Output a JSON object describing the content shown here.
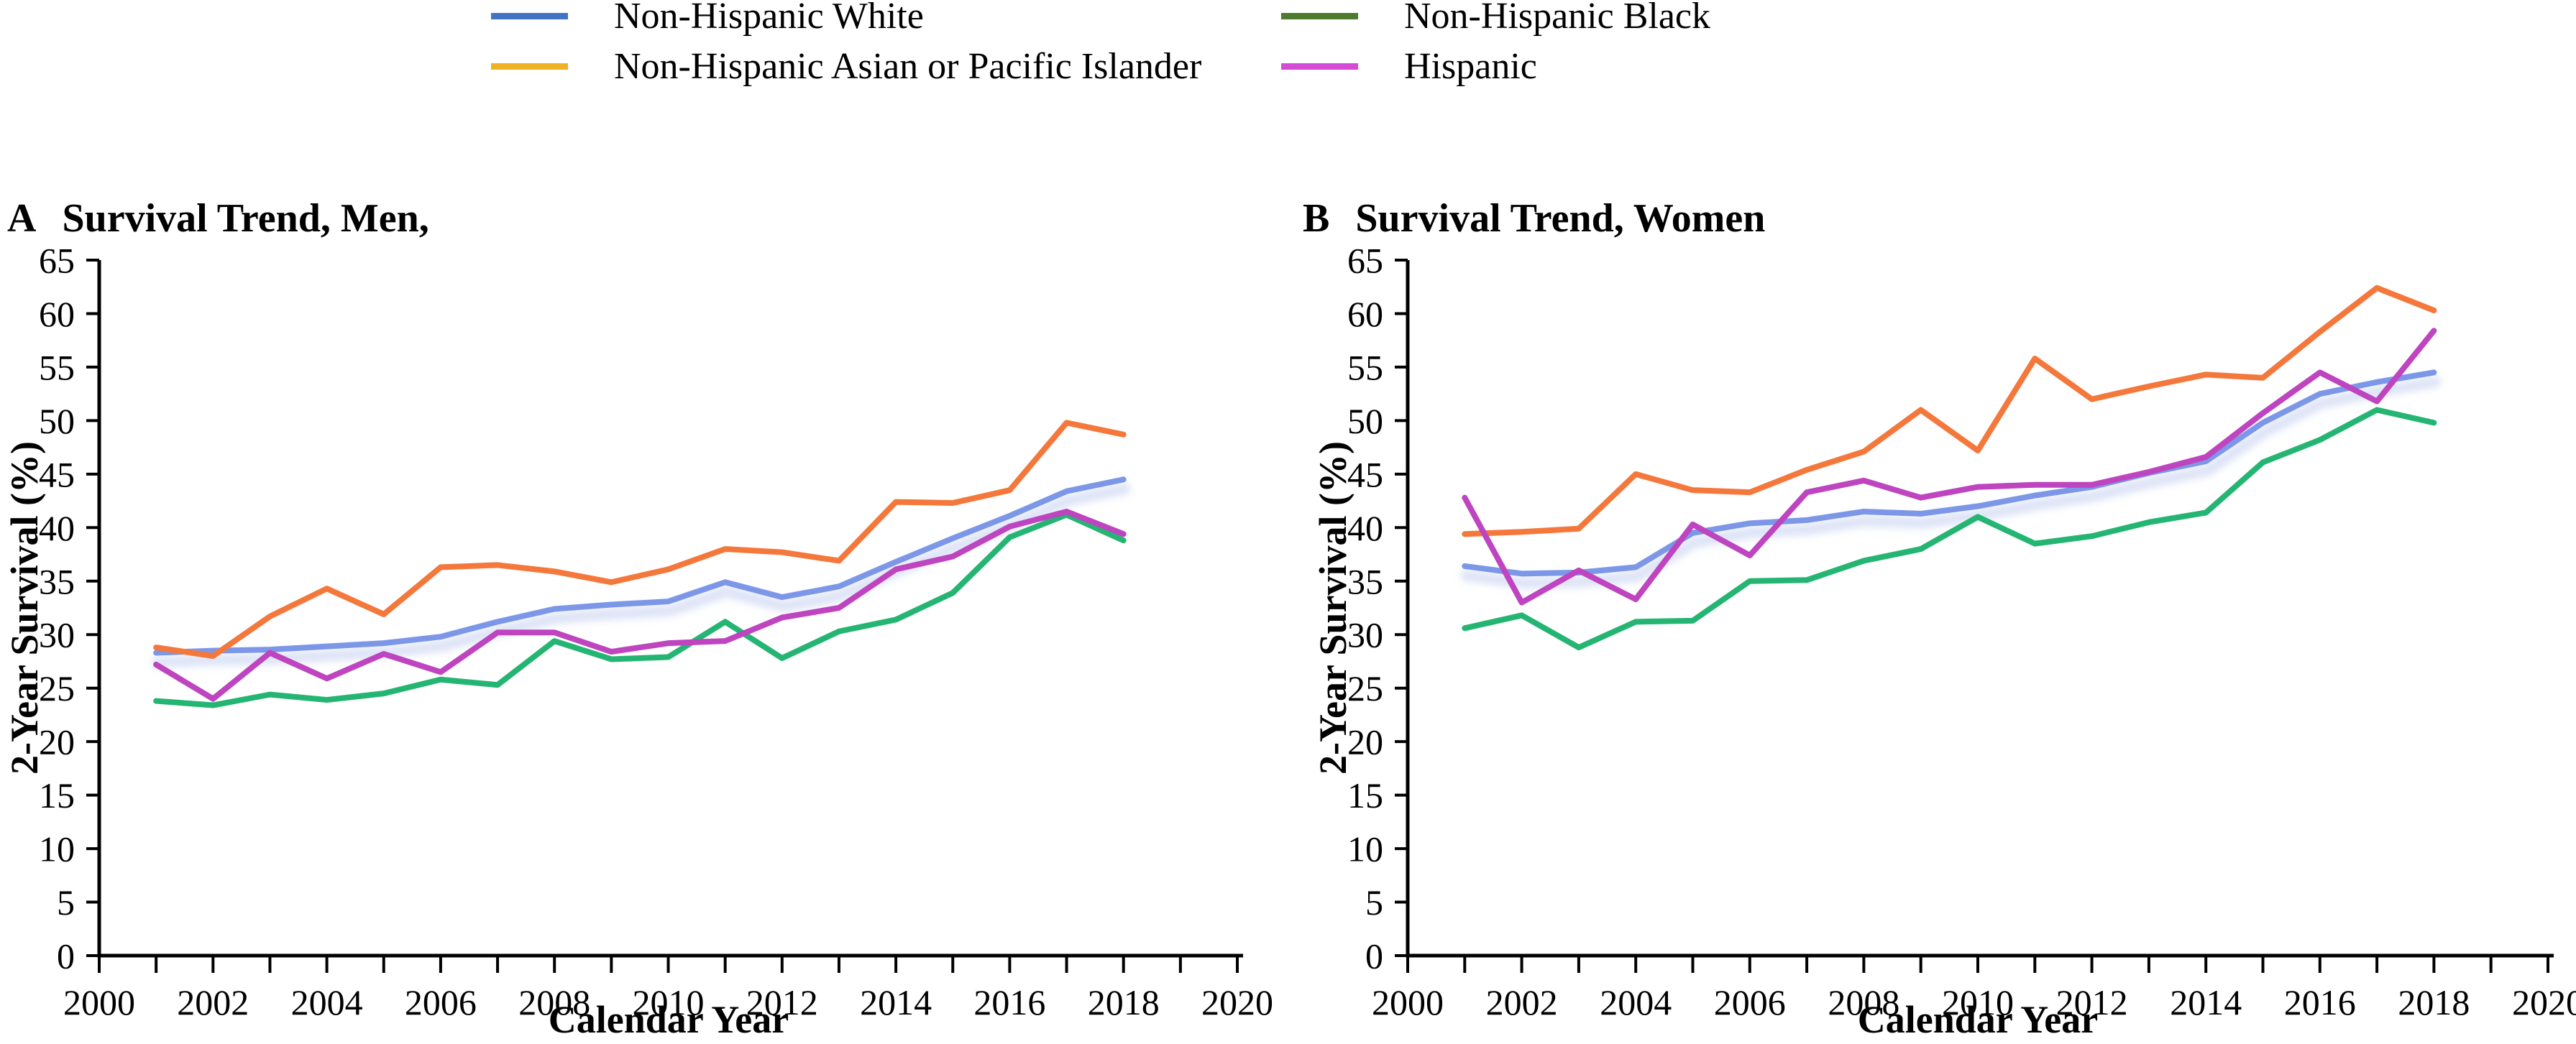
{
  "figure": {
    "background": "#ffffff",
    "axis_color": "#000000",
    "legend": {
      "position": "top",
      "items": [
        {
          "label": "Non-Hispanic White",
          "swatch_color": "#4472C4"
        },
        {
          "label": "Non-Hispanic Asian or Pacific Islander",
          "swatch_color": "#EFB225"
        },
        {
          "label": "Non-Hispanic Black",
          "swatch_color": "#4E7B30"
        },
        {
          "label": "Hispanic",
          "swatch_color": "#D64BD6"
        }
      ]
    }
  },
  "chart_data": [
    {
      "panel_label": "A",
      "title": "Survival Trend, Men,",
      "type": "line",
      "xlabel": "Calendar Year",
      "ylabel": "2-Year Survival (%)",
      "xlim": [
        2000,
        2020
      ],
      "ylim": [
        0,
        65
      ],
      "ytick_interval": 5,
      "xtick_label_interval": 2,
      "xtick_minor_interval": 1,
      "grid": false,
      "x": [
        2001,
        2002,
        2003,
        2004,
        2005,
        2006,
        2007,
        2008,
        2009,
        2010,
        2011,
        2012,
        2013,
        2014,
        2015,
        2016,
        2017,
        2018
      ],
      "series": [
        {
          "name": "Non-Hispanic White",
          "color": "#7D97E8",
          "halo": true,
          "halo_color": "#C7D2F1",
          "values": [
            28.3,
            28.5,
            28.6,
            28.9,
            29.2,
            29.8,
            31.2,
            32.4,
            32.8,
            33.1,
            34.9,
            33.5,
            34.5,
            36.8,
            39.0,
            41.1,
            43.4,
            44.5
          ]
        },
        {
          "name": "Non-Hispanic Asian or Pacific Islander",
          "color": "#F4783C",
          "values": [
            28.8,
            28.0,
            31.7,
            34.3,
            31.9,
            36.3,
            36.5,
            35.9,
            34.9,
            36.1,
            38.0,
            37.7,
            36.9,
            42.4,
            42.3,
            43.5,
            49.8,
            48.7
          ]
        },
        {
          "name": "Non-Hispanic Black",
          "color": "#25B573",
          "values": [
            23.8,
            23.4,
            24.4,
            23.9,
            24.5,
            25.8,
            25.3,
            29.4,
            27.7,
            27.9,
            31.2,
            27.8,
            30.3,
            31.4,
            33.9,
            39.1,
            41.2,
            38.8
          ]
        },
        {
          "name": "Hispanic",
          "color": "#BE44C0",
          "values": [
            27.2,
            24.0,
            28.3,
            25.9,
            28.2,
            26.5,
            30.2,
            30.2,
            28.4,
            29.2,
            29.4,
            31.6,
            32.5,
            36.1,
            37.3,
            40.1,
            41.5,
            39.4
          ]
        }
      ]
    },
    {
      "panel_label": "B",
      "title": "Survival Trend, Women",
      "type": "line",
      "xlabel": "Calendar Year",
      "ylabel": "2-Year Survival (%)",
      "xlim": [
        2000,
        2020
      ],
      "ylim": [
        0,
        65
      ],
      "ytick_interval": 5,
      "xtick_label_interval": 2,
      "xtick_minor_interval": 1,
      "grid": false,
      "x": [
        2001,
        2002,
        2003,
        2004,
        2005,
        2006,
        2007,
        2008,
        2009,
        2010,
        2011,
        2012,
        2013,
        2014,
        2015,
        2016,
        2017,
        2018
      ],
      "series": [
        {
          "name": "Non-Hispanic White",
          "color": "#7D97E8",
          "halo": true,
          "halo_color": "#C7D2F1",
          "values": [
            36.4,
            35.7,
            35.8,
            36.3,
            39.5,
            40.4,
            40.7,
            41.5,
            41.3,
            42.0,
            43.0,
            43.8,
            45.1,
            46.2,
            49.8,
            52.5,
            53.6,
            54.5
          ]
        },
        {
          "name": "Non-Hispanic Asian or Pacific Islander",
          "color": "#F4783C",
          "values": [
            39.4,
            39.6,
            39.9,
            45.0,
            43.5,
            43.3,
            45.4,
            47.1,
            51.0,
            47.2,
            55.8,
            52.0,
            53.2,
            54.3,
            54.0,
            58.3,
            62.4,
            60.3
          ]
        },
        {
          "name": "Non-Hispanic Black",
          "color": "#25B573",
          "values": [
            30.6,
            31.8,
            28.8,
            31.2,
            31.3,
            35.0,
            35.1,
            36.9,
            38.0,
            41.0,
            38.5,
            39.2,
            40.5,
            41.4,
            46.1,
            48.2,
            51.0,
            49.8
          ]
        },
        {
          "name": "Hispanic",
          "color": "#BE44C0",
          "values": [
            42.8,
            33.0,
            36.0,
            33.3,
            40.3,
            37.4,
            43.3,
            44.4,
            42.8,
            43.8,
            44.0,
            44.0,
            45.2,
            46.6,
            50.7,
            54.5,
            51.8,
            58.4
          ]
        }
      ]
    }
  ]
}
